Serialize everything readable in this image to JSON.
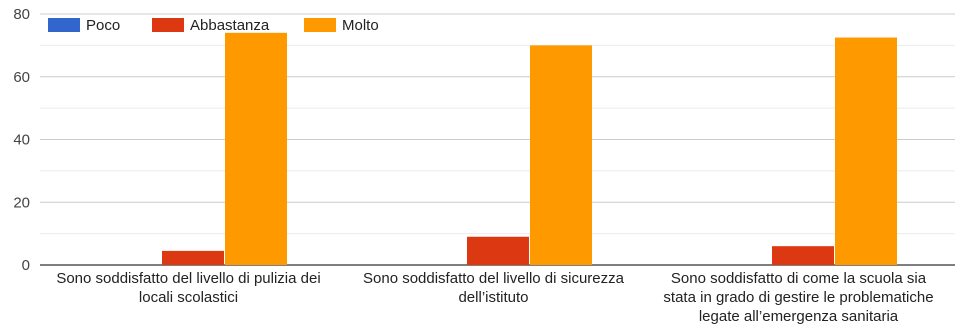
{
  "chart_data": {
    "type": "bar",
    "categories": [
      [
        "Sono soddisfatto del livello di pulizia dei",
        "locali scolastici"
      ],
      [
        "Sono soddisfatto del livello di sicurezza",
        "dell’istituto"
      ],
      [
        "Sono soddisfatto di come la scuola sia",
        "stata in grado di gestire le problematiche",
        "legate all’emergenza sanitaria"
      ]
    ],
    "series": [
      {
        "name": "Poco",
        "color": "#3366cc",
        "values": [
          0,
          0,
          0
        ]
      },
      {
        "name": "Abbastanza",
        "color": "#dc3912",
        "values": [
          4.5,
          9,
          6
        ]
      },
      {
        "name": "Molto",
        "color": "#ff9900",
        "values": [
          74,
          70,
          72.5
        ]
      }
    ],
    "ylim": [
      0,
      80
    ],
    "yticks": [
      0,
      20,
      40,
      60,
      80
    ],
    "grid": true,
    "legend": "top-left"
  }
}
